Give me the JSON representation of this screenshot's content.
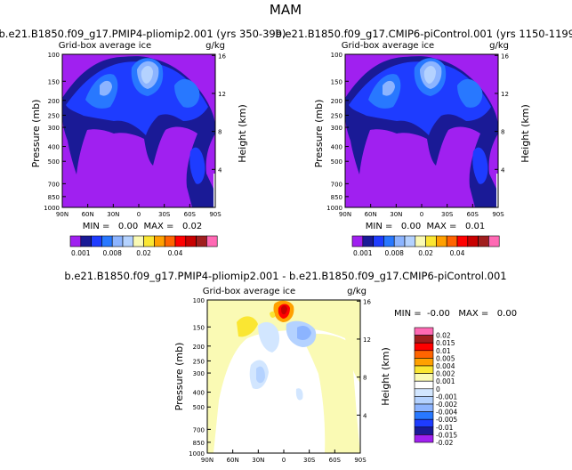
{
  "figure_title": "MAM",
  "chart_data": [
    {
      "type": "contour",
      "title": "b.e21.B1850.f09_g17.PMIP4-pliomip2.001 (yrs 350-399)",
      "subtitle": "Grid-box average ice",
      "units": "g/kg",
      "xlabel": "",
      "ylabel": "Pressure (mb)",
      "y2label": "Height (km)",
      "x_ticks": [
        "90N",
        "60N",
        "30N",
        "0",
        "30S",
        "60S",
        "90S"
      ],
      "y_ticks": [
        "100",
        "150",
        "200",
        "250",
        "300",
        "400",
        "500",
        "700",
        "850",
        "1000"
      ],
      "y2_ticks": [
        "16",
        "12",
        "8",
        "4"
      ],
      "stats": "MIN =   0.00  MAX =   0.02",
      "colorbar_labels": [
        "0.001",
        "0.008",
        "0.02",
        "0.04"
      ]
    },
    {
      "type": "contour",
      "title": "b.e21.B1850.f09_g17.CMIP6-piControl.001 (yrs 1150-1199)",
      "subtitle": "Grid-box average ice",
      "units": "g/kg",
      "xlabel": "",
      "ylabel": "Pressure (mb)",
      "y2label": "Height (km)",
      "x_ticks": [
        "90N",
        "60N",
        "30N",
        "0",
        "30S",
        "60S",
        "90S"
      ],
      "y_ticks": [
        "100",
        "150",
        "200",
        "250",
        "300",
        "400",
        "500",
        "700",
        "850",
        "1000"
      ],
      "y2_ticks": [
        "16",
        "12",
        "8",
        "4"
      ],
      "stats": "MIN =   0.00  MAX =   0.01",
      "colorbar_labels": [
        "0.001",
        "0.008",
        "0.02",
        "0.04"
      ]
    },
    {
      "type": "contour",
      "title": "b.e21.B1850.f09_g17.PMIP4-pliomip2.001 - b.e21.B1850.f09_g17.CMIP6-piControl.001",
      "subtitle": "Grid-box average ice",
      "units": "g/kg",
      "xlabel": "",
      "ylabel": "Pressure (mb)",
      "y2label": "Height (km)",
      "x_ticks": [
        "90N",
        "60N",
        "30N",
        "0",
        "30S",
        "60S",
        "90S"
      ],
      "y_ticks": [
        "100",
        "150",
        "200",
        "250",
        "300",
        "400",
        "500",
        "700",
        "850",
        "1000"
      ],
      "y2_ticks": [
        "16",
        "12",
        "8",
        "4"
      ],
      "stats": "MIN =  -0.00   MAX =   0.00",
      "colorbar_labels": [
        "0.02",
        "0.015",
        "0.01",
        "0.005",
        "0.004",
        "0.002",
        "0.001",
        "0",
        "-0.001",
        "-0.002",
        "-0.004",
        "-0.005",
        "-0.01",
        "-0.015",
        "-0.02"
      ]
    }
  ],
  "palette_abs": [
    "#a020f0",
    "#1a1a96",
    "#1e3cff",
    "#2878ff",
    "#8cb4ff",
    "#b4d2ff",
    "#fafab4",
    "#fae632",
    "#ffa000",
    "#ff6400",
    "#ff0000",
    "#c80000",
    "#a01e1e",
    "#ff69b4"
  ],
  "palette_diff": [
    "#ff69b4",
    "#a01e1e",
    "#ff0000",
    "#ff6400",
    "#ffa000",
    "#fae632",
    "#fafab4",
    "#ffffff",
    "#d2e6ff",
    "#b4d2ff",
    "#8cb4ff",
    "#2878ff",
    "#1e3cff",
    "#1a1a96",
    "#a020f0"
  ]
}
